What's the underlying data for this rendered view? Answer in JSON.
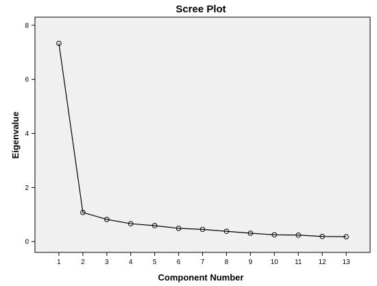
{
  "chart_data": {
    "type": "line",
    "title": "Scree Plot",
    "xlabel": "Component Number",
    "ylabel": "Eigenvalue",
    "x": [
      1,
      2,
      3,
      4,
      5,
      6,
      7,
      8,
      9,
      10,
      11,
      12,
      13
    ],
    "y": [
      7.33,
      1.08,
      0.82,
      0.66,
      0.59,
      0.49,
      0.45,
      0.38,
      0.31,
      0.25,
      0.24,
      0.19,
      0.18
    ],
    "xlim": [
      0,
      14
    ],
    "ylim": [
      -0.4,
      8.3
    ],
    "yticks": [
      0,
      2,
      4,
      6,
      8
    ],
    "xticks": [
      1,
      2,
      3,
      4,
      5,
      6,
      7,
      8,
      9,
      10,
      11,
      12,
      13
    ],
    "grid": false,
    "legend": "none",
    "plot_background": "#f0f0f0",
    "line_color": "#000000",
    "marker": "open-circle"
  }
}
